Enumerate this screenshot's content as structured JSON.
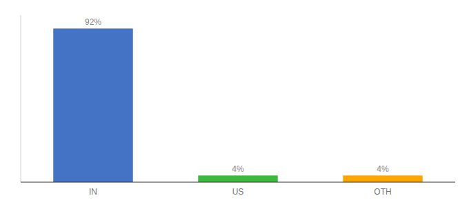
{
  "chart_data": {
    "type": "bar",
    "categories": [
      "IN",
      "US",
      "OTH"
    ],
    "values": [
      92,
      4,
      4
    ],
    "value_labels": [
      "92%",
      "4%",
      "4%"
    ],
    "colors": [
      "#4472c4",
      "#3dba3d",
      "#ffa500"
    ],
    "ylim": [
      0,
      100
    ],
    "data_labels": true,
    "tick_labels": "x",
    "grid": false
  }
}
